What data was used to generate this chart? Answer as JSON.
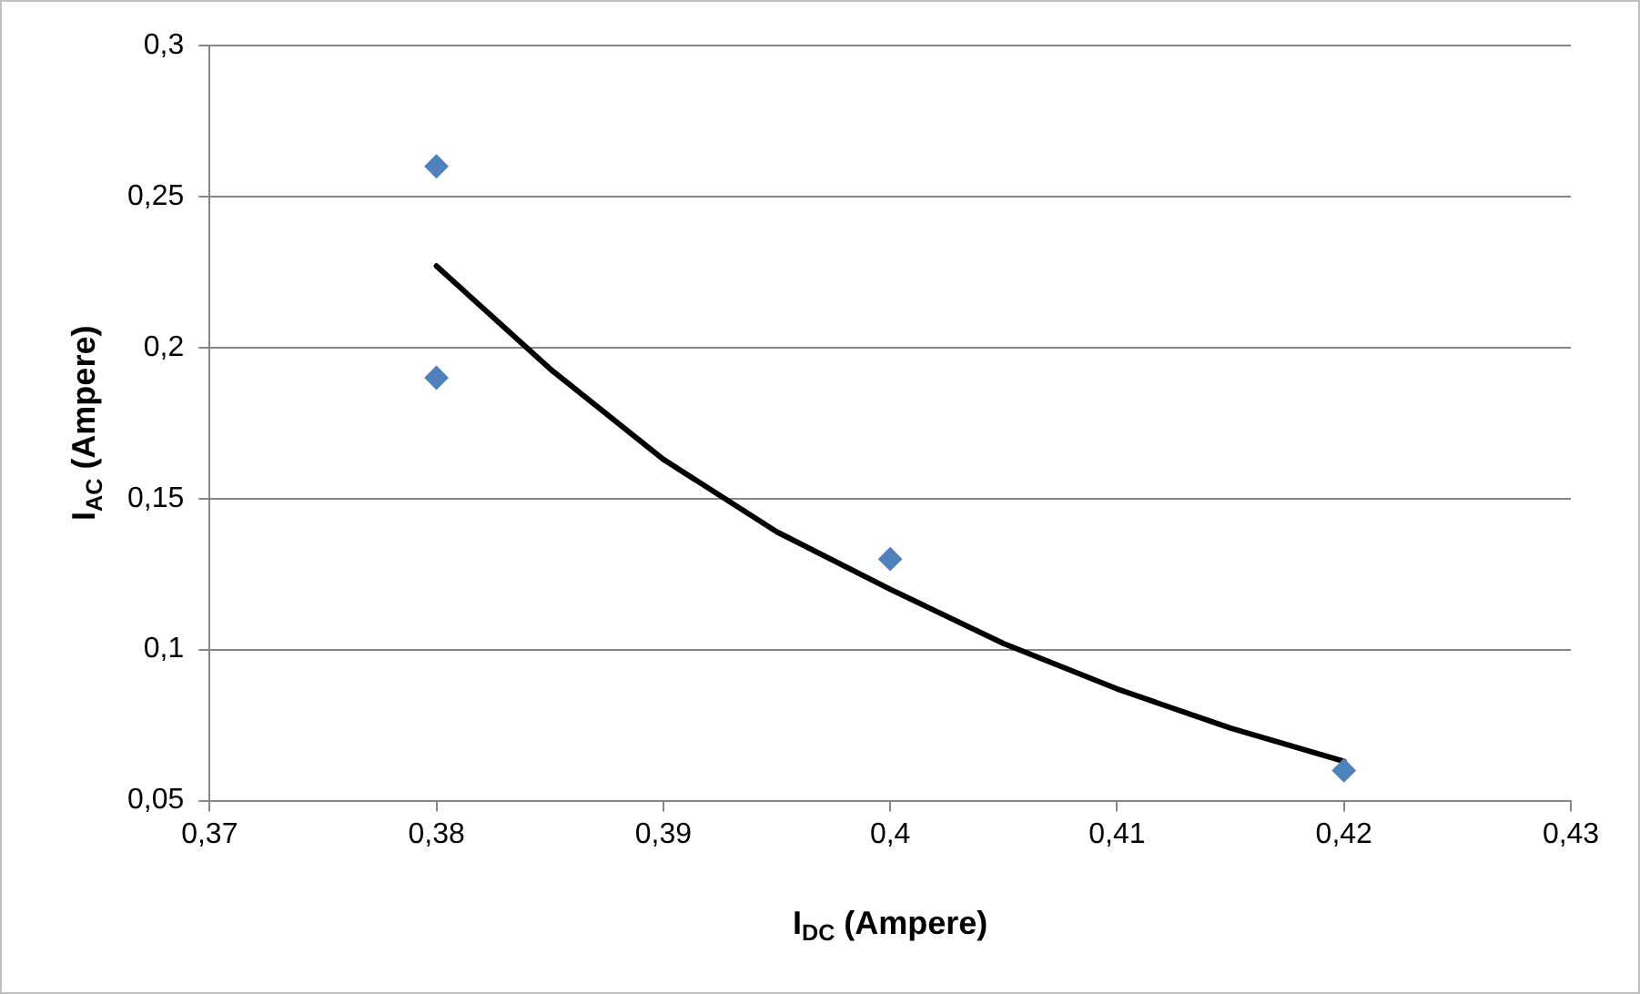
{
  "chart_data": {
    "type": "scatter",
    "xlabel": "I$_{DC}$ (Ampere)",
    "ylabel": "I$_{AC}$ (Ampere)",
    "series": [
      {
        "type": "scatter",
        "color": "#4f81bd",
        "x": [
          0.38,
          0.38,
          0.4,
          0.42
        ],
        "values": [
          0.26,
          0.19,
          0.13,
          0.06
        ],
        "marker": "diamond"
      },
      {
        "type": "line",
        "color": "#000000",
        "x": [
          0.38,
          0.385,
          0.39,
          0.395,
          0.4,
          0.405,
          0.41,
          0.415,
          0.42
        ],
        "values": [
          0.227,
          0.193,
          0.163,
          0.139,
          0.12,
          0.102,
          0.087,
          0.074,
          0.063
        ],
        "marker": "none"
      }
    ],
    "xlim": [
      0.37,
      0.43
    ],
    "xticks": [
      {
        "value": 0.37,
        "label": "0,37"
      },
      {
        "value": 0.38,
        "label": "0,38"
      },
      {
        "value": 0.39,
        "label": "0,39"
      },
      {
        "value": 0.4,
        "label": "0,4"
      },
      {
        "value": 0.41,
        "label": "0,41"
      },
      {
        "value": 0.42,
        "label": "0,42"
      },
      {
        "value": 0.43,
        "label": "0,43"
      }
    ],
    "ylim": [
      0.05,
      0.3
    ],
    "yticks": [
      {
        "value": 0.05,
        "label": "0,05"
      },
      {
        "value": 0.1,
        "label": "0,1"
      },
      {
        "value": 0.15,
        "label": "0,15"
      },
      {
        "value": 0.2,
        "label": "0,2"
      },
      {
        "value": 0.25,
        "label": "0,25"
      },
      {
        "value": 0.3,
        "label": "0,3"
      }
    ],
    "grid": "y",
    "legend": false
  }
}
